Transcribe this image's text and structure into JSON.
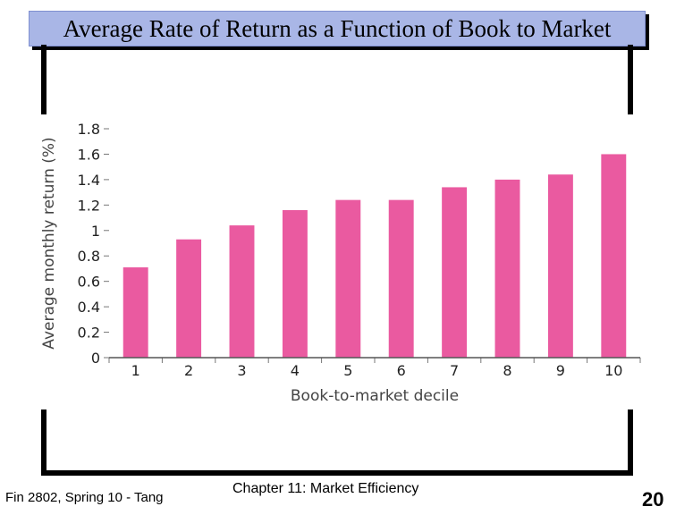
{
  "slide": {
    "title": "Average Rate of Return as a Function of Book to Market",
    "footer_left": "Fin 2802, Spring 10 - Tang",
    "footer_center": "Chapter 11: Market Efficiency",
    "page_number": "20"
  },
  "chart_data": {
    "type": "bar",
    "categories": [
      "1",
      "2",
      "3",
      "4",
      "5",
      "6",
      "7",
      "8",
      "9",
      "10"
    ],
    "values": [
      0.71,
      0.93,
      1.04,
      1.16,
      1.24,
      1.24,
      1.34,
      1.4,
      1.44,
      1.6
    ],
    "title": "",
    "xlabel": "Book-to-market decile",
    "ylabel": "Average monthly return (%)",
    "ylim": [
      0,
      1.8
    ],
    "yticks": [
      "0",
      "0.2",
      "0.4",
      "0.6",
      "0.8",
      "1",
      "1.2",
      "1.4",
      "1.6",
      "1.8"
    ],
    "bar_color": "#ea5aa0",
    "grid": false
  }
}
